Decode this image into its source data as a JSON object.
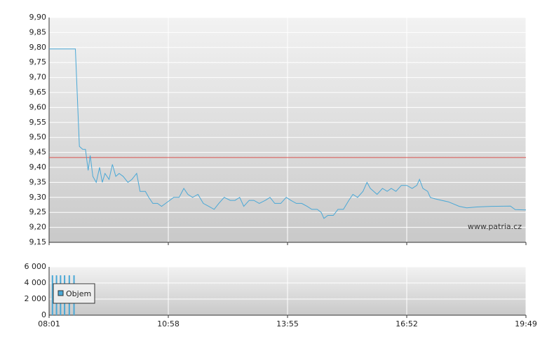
{
  "chart_data": [
    {
      "type": "line",
      "watermark": "www.patria.cz",
      "xlim": [
        481,
        1189
      ],
      "xticks": [
        481,
        658,
        835,
        1012,
        1189
      ],
      "ylim": [
        9.15,
        9.9
      ],
      "yticks": [
        {
          "value": 9.15,
          "label": "9,15"
        },
        {
          "value": 9.2,
          "label": "9,20"
        },
        {
          "value": 9.25,
          "label": "9,25"
        },
        {
          "value": 9.3,
          "label": "9,30"
        },
        {
          "value": 9.35,
          "label": "9,35"
        },
        {
          "value": 9.4,
          "label": "9,40"
        },
        {
          "value": 9.45,
          "label": "9,45"
        },
        {
          "value": 9.5,
          "label": "9,50"
        },
        {
          "value": 9.55,
          "label": "9,55"
        },
        {
          "value": 9.6,
          "label": "9,60"
        },
        {
          "value": 9.65,
          "label": "9,65"
        },
        {
          "value": 9.7,
          "label": "9,70"
        },
        {
          "value": 9.75,
          "label": "9,75"
        },
        {
          "value": 9.8,
          "label": "9,80"
        },
        {
          "value": 9.85,
          "label": "9,85"
        },
        {
          "value": 9.9,
          "label": "9,90"
        }
      ],
      "grid": true,
      "reference_value": 9.433,
      "reference_color": "#d9534f",
      "color": "#4aa8d6",
      "x": [
        481,
        520,
        526,
        531,
        535,
        539,
        542,
        546,
        551,
        556,
        560,
        564,
        570,
        575,
        580,
        585,
        591,
        598,
        604,
        611,
        616,
        624,
        629,
        635,
        642,
        648,
        654,
        660,
        666,
        674,
        681,
        687,
        694,
        702,
        710,
        718,
        726,
        733,
        741,
        750,
        757,
        764,
        770,
        778,
        785,
        793,
        802,
        809,
        816,
        825,
        833,
        840,
        848,
        856,
        864,
        871,
        879,
        885,
        889,
        895,
        903,
        910,
        918,
        926,
        932,
        939,
        947,
        953,
        958,
        963,
        968,
        976,
        983,
        989,
        996,
        1004,
        1012,
        1020,
        1027,
        1031,
        1036,
        1043,
        1047,
        1054,
        1064,
        1074,
        1090,
        1101,
        1116,
        1137,
        1166,
        1173,
        1189
      ],
      "values": [
        9.795,
        9.795,
        9.47,
        9.46,
        9.46,
        9.39,
        9.44,
        9.37,
        9.35,
        9.4,
        9.35,
        9.38,
        9.36,
        9.41,
        9.37,
        9.38,
        9.37,
        9.35,
        9.36,
        9.38,
        9.32,
        9.32,
        9.3,
        9.28,
        9.28,
        9.27,
        9.28,
        9.29,
        9.3,
        9.3,
        9.33,
        9.31,
        9.3,
        9.31,
        9.28,
        9.27,
        9.26,
        9.28,
        9.3,
        9.29,
        9.29,
        9.3,
        9.27,
        9.29,
        9.29,
        9.28,
        9.29,
        9.3,
        9.28,
        9.28,
        9.3,
        9.29,
        9.28,
        9.28,
        9.27,
        9.26,
        9.26,
        9.25,
        9.23,
        9.24,
        9.24,
        9.26,
        9.26,
        9.29,
        9.31,
        9.3,
        9.32,
        9.35,
        9.33,
        9.32,
        9.31,
        9.33,
        9.32,
        9.33,
        9.32,
        9.34,
        9.34,
        9.33,
        9.34,
        9.36,
        9.33,
        9.32,
        9.3,
        9.295,
        9.29,
        9.285,
        9.27,
        9.265,
        9.268,
        9.27,
        9.271,
        9.259,
        9.258
      ]
    },
    {
      "type": "bar",
      "xlim": [
        481,
        1189
      ],
      "xticks": [
        {
          "value": 481,
          "label": "08:01"
        },
        {
          "value": 658,
          "label": "10:58"
        },
        {
          "value": 835,
          "label": "13:55"
        },
        {
          "value": 1012,
          "label": "16:52"
        },
        {
          "value": 1189,
          "label": "19:49"
        }
      ],
      "ylim": [
        0,
        6000
      ],
      "yticks": [
        0,
        {
          "value": 2000,
          "label": "2 000"
        },
        {
          "value": 4000,
          "label": "4 000"
        },
        {
          "value": 6000,
          "label": "6 000"
        }
      ],
      "grid": true,
      "series": [
        {
          "name": "Objem",
          "color": "#4aa8d6",
          "x": [
            486,
            492,
            498,
            504,
            511,
            518
          ],
          "values": [
            4950,
            4950,
            4950,
            4950,
            4950,
            4950
          ]
        }
      ]
    }
  ]
}
